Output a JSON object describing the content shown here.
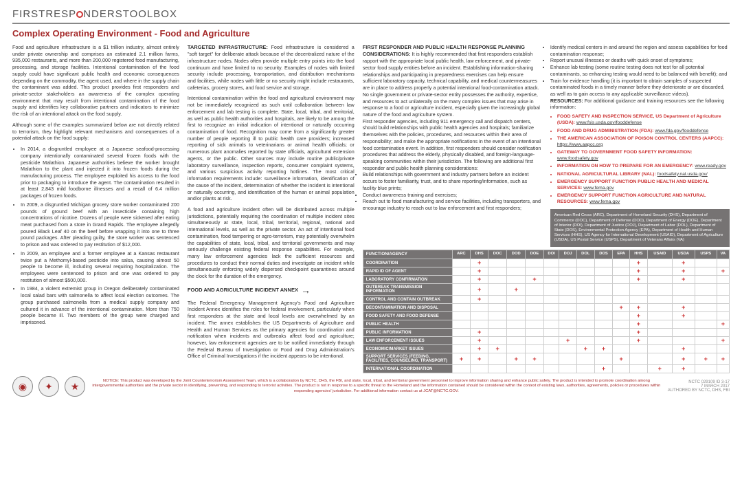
{
  "header": {
    "brand_first": "FIRSTRESP",
    "brand_mid": "NDERS",
    "brand_last": "TOOLBOX"
  },
  "subtitle": "Complex Operating Environment - Food and Agriculture",
  "col1": {
    "p1": "Food and agriculture infrastructure is a $1 trillion industry, almost entirely under private ownership and comprises an estimated 2.1 million farms, 935,000 restaurants, and more than 200,000 registered food manufacturing, processing, and storage facilities. Intentional contamination of the food supply could have significant public health and economic consequences depending on the commodity, the agent used, and where in the supply chain the contaminant was added. This product provides first responders and private-sector stakeholders an awareness of the complex operating environment that may result from intentional contamination of the food supply and identifies key collaborative partners and indicators to minimize the risk of an intentional attack on the food supply.",
    "p2": "Although some of the examples summarized below are not directly related to terrorism, they highlight relevant mechanisms and consequences of a potential attack on the food supply:",
    "b1": "In 2014, a disgruntled employee at a Japanese seafood-processing company intentionally contaminated several frozen foods with the pesticide Malathion. Japanese authorities believe the worker brought Malathion to the plant and injected it into frozen foods during the manufacturing process. The employee exploited his access to the food prior to packaging to introduce the agent. The contamination resulted in at least 2,843 mild foodborne illnesses and a recall of 6.4 million packages of frozen foods.",
    "b2": "In 2009, a disgruntled Michigan grocery store worker contaminated 200 pounds of ground beef with an insecticide containing high concentrations of nicotine. Dozens of people were sickened after eating meat purchased from a store in Grand Rapids. The employee allegedly poured Black Leaf 40 on the beef before wrapping it into one to three pound packages. After pleading guilty, the store worker was sentenced to prison and was ordered to pay restitution of $12,000.",
    "b3": "In 2009, an employee and a former employee at a Kansas restaurant twice put a Methomyl-based pesticide into salsa, causing almost 50 people to become ill, including several requiring hospitalization. The employees were sentenced to prison and one was ordered to pay restitution of almost $500,000.",
    "b4": "In 1984, a violent extremist group in Oregon deliberately contaminated local salad bars with salmonella to affect local election outcomes. The group purchased salmonella from a medical supply company and cultured it in advance of the intentional contamination. More than 750 people became ill. Two members of the group were charged and imprisoned."
  },
  "col2": {
    "h1": "TARGETED INFRASTRUCTURE:",
    "p1": " Food infrastructure is considered a \"soft target\" for deliberate attack because of the decentralized nature of the infrastructure nodes. Nodes often provide multiple entry points into the food continuum and have limited to no security. Examples of nodes with limited security include processing, transportation, and distribution mechanisms and facilities, while nodes with little or no security might include restaurants, cafeterias, grocery stores, and food service and storage.",
    "p2": "Intentional contamination within the food and agricultural environment may not be immediately recognized as such until collaboration between law enforcement and lab testing is complete. State, local, tribal, and territorial, as well as public health authorities and hospitals, are likely to be among the first to recognize an initial indication of intentional or naturally occurring contamination of food. Recognition may come from a significantly greater number of people reporting ill to public health care providers; increased reporting of sick animals to veterinarians or animal health officials; or numerous plant anomalies reported by state officials, agricultural extension agents, or the public. Other sources may include routine public/private laboratory surveillance, inspection reports, consumer complaint systems, and various suspicious activity reporting hotlines. The most critical information requirements include: surveillance information, identification of the cause of the incident, determination of whether the incident is intentional or naturally occurring, and identification of the human or animal population and/or plants at risk.",
    "p3": "A food and agriculture incident often will be distributed across multiple jurisdictions, potentially requiring the coordination of multiple incident sites simultaneously at state, local, tribal, territorial, regional, national and international levels, as well as the private sector. An act of intentional food contamination, food tampering or agro-terrorism, may potentially overwhelm the capabilities of state, local, tribal, and territorial governments and may seriously challenge existing federal response capabilities. For example, many law enforcement agencies lack the sufficient resources and procedures to conduct their normal duties and investigate an incident while simultaneously enforcing widely dispersed checkpoint quarantines around the clock for the duration of the emergency.",
    "h2": "FOOD AND AGRICULTURE INCIDENT ANNEX",
    "p4": "The Federal Emergency Management Agency's Food and Agriculture Incident Annex identifies the roles for federal involvement, particularly when first responders at the state and local levels are overwhelmed by an incident. The annex establishes the US Departments of Agriculture and Health and Human Services as the primary agencies for coordination and notification when incidents and outbreaks affect food and agriculture; however, law enforcement agencies are to be notified immediately through the Federal Bureau of Investigation or Food and Drug Administration's Office of Criminal Investigations if the incident appears to be intentional."
  },
  "col3": {
    "h1": "FIRST RESPONDER AND PUBLIC HEALTH RESPONSE PLANNING CONSIDERATIONS:",
    "p1": " It is highly recommended that first responders establish rapport with the appropriate local public health, law enforcement, and private-sector food supply entities before an incident. Establishing information-sharing relationships and participating in preparedness exercises can help ensure sufficient laboratory capacity, technical capability, and medical countermeasures are in place to address properly a potential intentional food-contamination attack. No single government or private-sector entity possesses the authority, expertise, and resources to act unilaterally on the many complex issues that may arise in response to a food or agriculture incident, especially given the increasingly global nature of the food and agriculture system.",
    "p2": "First responder agencies, including 911 emergency call and dispatch centers, should build relationships with public health agencies and hospitals; familiarize themselves with the policies, procedures, and resources within their area of responsibility; and make the appropriate notifications in the event of an intentional food contamination event. In addition, first responders should consider notification procedures that address the elderly, physically disabled, and foreign-language-speaking communities within their jurisdiction. The following are additional first responder and public health planning considerations:",
    "b1": "Build relationships with government and industry partners before an incident occurs to foster familiarity, trust, and to share reporting/information, such as facility blue prints;",
    "b2": "Conduct awareness training and exercises;",
    "b3": "Reach out to food manufacturing and service facilities, including transporters, and encourage industry to reach out to law enforcement and first responders;"
  },
  "col4": {
    "b1": "Identify medical centers in and around the region and assess capabilities for food contamination response;",
    "b2": "Report unusual illnesses or deaths with quick onset of symptoms;",
    "b3": "Enhance lab testing (some routine testing does not test for all potential contaminants, so enhancing testing would need to be balanced with benefit); and",
    "b4": "Train for evidence handling (it is important to obtain samples of suspected contaminated foods in a timely manner before they deteriorate or are discarded, as well as to gain access to any applicable surveillance videos).",
    "reslabel": "RESOURCES:",
    "restext": " For additional guidance and training resources see the following information:",
    "r1": {
      "t": "FOOD SAFETY AND INSPECTION SERVICE, US Department of Agriculture (USDA):",
      "u": "www.fsis.usda.gov/fooddefense"
    },
    "r2": {
      "t": "FOOD AND DRUG ADMINISTRATION (FDA):",
      "u": "www.fda.gov/fooddefense"
    },
    "r3": {
      "t": "THE AMERICAN ASSOCIATION OF POISON CONTROL CENTERS (AAPCC):",
      "u": "https://www.aapcc.org"
    },
    "r4": {
      "t": "GATEWAY TO GOVERNMENT FOOD SAFETY INFORMATION:",
      "u": "www.foodsafety.gov"
    },
    "r5": {
      "t": "INFORMATION ON HOW TO PREPARE FOR AN EMERGENCY:",
      "u": "www.ready.gov"
    },
    "r6": {
      "t": "NATIONAL AGRICULTURAL LIBRARY (NAL):",
      "u": "foodsafety.nal.usda.gov/"
    },
    "r7": {
      "t": "EMERGENCY SUPPORT FUNCTION PUBLIC HEALTH AND MEDICAL SERVICES:",
      "u": "www.fema.gov"
    },
    "r8": {
      "t": "EMERGENCY SUPPORT FUNCTION AGRICULTURE AND NATURAL RESOURCES:",
      "u": "www.fema.gov"
    },
    "agencybox": "American Red Cross (ARC), Department of Homeland Security (DHS), Department of Commerce (DOC), Department of Defense (DOD), Department of Energy (DOE), Department of Interior (DOI), Department of Justice (DOJ), Department of Labor (DOL), Department of State (DOS), Environmental Protection Agency (EPA), Department of Health and Human Services (HHS), US Agency for International Development (USAID), Department of Agriculture (USDA), US Postal Service (USPS), Department of Veterans Affairs (VA)"
  },
  "table": {
    "cols": [
      "FUNCTION/AGENCY",
      "ARC",
      "DHS",
      "DOC",
      "DOD",
      "DOE",
      "DOI",
      "DOJ",
      "DOL",
      "DOS",
      "EPA",
      "HHS",
      "USAID",
      "USDA",
      "USPS",
      "VA"
    ],
    "rows": [
      {
        "l": "COORDINATION",
        "c": [
          "",
          "+",
          "",
          "",
          "",
          "",
          "",
          "",
          "",
          "",
          "+",
          "",
          "+",
          "",
          " "
        ]
      },
      {
        "l": "RAPID ID OF AGENT",
        "c": [
          "",
          "+",
          "",
          "",
          "",
          "",
          "",
          "",
          "",
          "",
          "+",
          "",
          "+",
          "",
          "+"
        ]
      },
      {
        "l": "LABORATORY CONFIRMATION",
        "c": [
          "",
          "+",
          "",
          "",
          "+",
          "",
          "",
          "",
          "",
          "",
          "+",
          "",
          "+",
          "",
          ""
        ]
      },
      {
        "l": "OUTBREAK TRANSMISSION INFORMATION",
        "c": [
          "",
          "+",
          "",
          "+",
          "",
          "",
          "",
          "",
          "",
          "",
          "",
          "",
          "",
          "",
          ""
        ]
      },
      {
        "l": "CONTROL AND CONTAIN OUTBREAK",
        "c": [
          "",
          "+",
          "",
          "",
          "",
          "",
          "",
          "",
          "",
          "",
          "",
          "",
          "",
          "",
          ""
        ]
      },
      {
        "l": "DECONTAMINATION AND DISPOSAL",
        "c": [
          "",
          "",
          "",
          "",
          "",
          "",
          "",
          "",
          "",
          "+",
          "+",
          "",
          "+",
          "",
          ""
        ]
      },
      {
        "l": "FOOD SAFETY AND FOOD DEFENSE",
        "c": [
          "",
          "",
          "",
          "",
          "",
          "",
          "",
          "",
          "",
          "",
          "+",
          "",
          "+",
          "",
          ""
        ]
      },
      {
        "l": "PUBLIC HEALTH",
        "c": [
          "",
          "",
          "",
          "",
          "",
          "",
          "",
          "",
          "",
          "",
          "+",
          "",
          "",
          "",
          "+"
        ]
      },
      {
        "l": "PUBLIC INFORMATION",
        "c": [
          "",
          "+",
          "",
          "",
          "",
          "",
          "",
          "",
          "",
          "",
          "+",
          "",
          "",
          "",
          ""
        ]
      },
      {
        "l": "LAW ENFORCEMENT ISSUES",
        "c": [
          "",
          "+",
          "",
          "",
          "",
          "",
          "+",
          "",
          "",
          "",
          "+",
          "",
          "",
          "",
          "+"
        ]
      },
      {
        "l": "ECONOMIC/MARKET ISSUES",
        "c": [
          "",
          "+",
          "+",
          "",
          "",
          "",
          "",
          "+",
          "+",
          "",
          "",
          "",
          "+",
          "",
          ""
        ]
      },
      {
        "l": "SUPPORT SERVICES (FEEDING, FACILITIES, COUNSELING, TRANSPORT)",
        "c": [
          "+",
          "+",
          "",
          "+",
          "+",
          "",
          "",
          "",
          "",
          "+",
          "",
          "",
          "+",
          "+",
          "+"
        ]
      },
      {
        "l": "INTERNATIONAL COORDINATION",
        "c": [
          "",
          "",
          "",
          "",
          "",
          "",
          "",
          "",
          "+",
          "",
          "",
          "+",
          "+",
          "",
          ""
        ]
      }
    ]
  },
  "footer": {
    "notice": "NOTICE: This product was developed by the Joint Counterterrorism Assessment Team, which is a collaboration by NCTC, DHS, the FBI, and state, local, tribal, and territorial government personnel to improve information sharing and enhance public safety. The product is intended to promote coordination among intergovernmental authorities and the private sector in identifying, preventing, and responding to terrorist activities. The product is not in response to a specific threat to the Homeland and the information contained should be considered within the context of existing laws, authorities, agreements, policies or procedures within responding agencies' jurisdiction. For additional information contact us at JCAT@NCTC.GOV.",
    "code": "NCTC 029109 ID 3-17",
    "date": "7 MARCH 2017",
    "auth": "AUTHORED BY NCTC, DHS, FBI"
  }
}
